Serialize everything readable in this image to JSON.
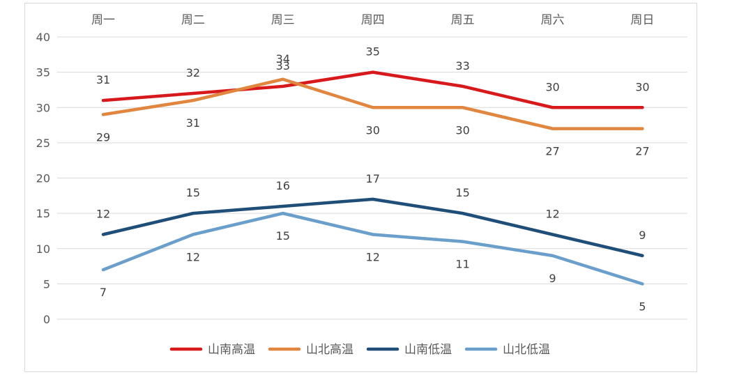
{
  "chart_data": {
    "type": "line",
    "title": "",
    "xlabel": "",
    "ylabel": "",
    "categories": [
      "周一",
      "周二",
      "周三",
      "周四",
      "周五",
      "周六",
      "周日"
    ],
    "ylim": [
      0,
      40
    ],
    "yticks": [
      0,
      5,
      10,
      15,
      20,
      25,
      30,
      35,
      40
    ],
    "grid": true,
    "x_axis_position": "top",
    "legend_position": "bottom",
    "series": [
      {
        "name": "山南高温",
        "color": "#d7191c",
        "values": [
          31,
          32,
          33,
          35,
          33,
          30,
          30
        ],
        "label_pos": "above"
      },
      {
        "name": "山北高温",
        "color": "#e0863f",
        "values": [
          29,
          31,
          34,
          30,
          30,
          27,
          27
        ],
        "label_pos": "below_except_peak"
      },
      {
        "name": "山南低温",
        "color": "#1f4e79",
        "values": [
          12,
          15,
          16,
          17,
          15,
          12,
          9
        ],
        "label_pos": "above"
      },
      {
        "name": "山北低温",
        "color": "#6a9fcb",
        "values": [
          7,
          12,
          15,
          12,
          11,
          9,
          5
        ],
        "label_pos": "below"
      }
    ]
  },
  "legend": {
    "items": [
      {
        "label": "山南高温",
        "color": "#d7191c"
      },
      {
        "label": "山北高温",
        "color": "#e0863f"
      },
      {
        "label": "山南低温",
        "color": "#1f4e79"
      },
      {
        "label": "山北低温",
        "color": "#6a9fcb"
      }
    ]
  }
}
